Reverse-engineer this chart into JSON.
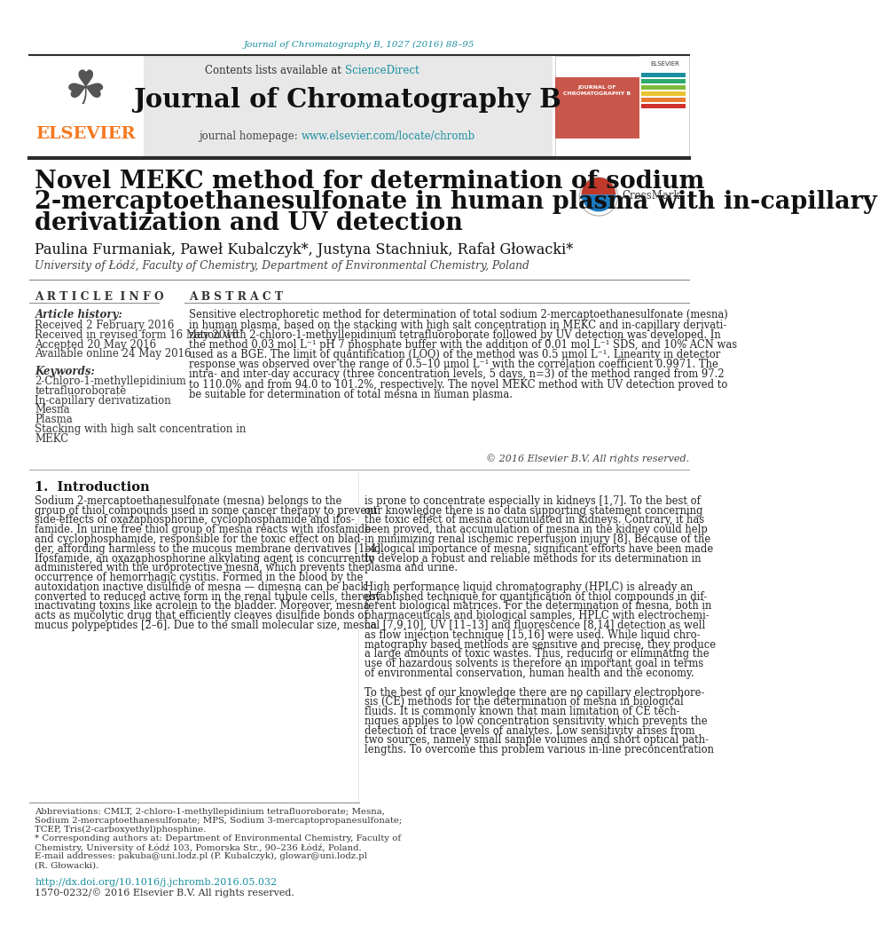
{
  "page_bg": "#ffffff",
  "journal_ref_color": "#1a8fa0",
  "journal_ref_text": "Journal of Chromatography B, 1027 (2016) 88–95",
  "header_bg": "#e8e8e8",
  "contents_text": "Contents lists available at ",
  "sciencedirect_text": "ScienceDirect",
  "sciencedirect_color": "#1a8fa0",
  "journal_title": "Journal of Chromatography B",
  "homepage_text": "journal homepage: ",
  "homepage_url": "www.elsevier.com/locate/chromb",
  "homepage_url_color": "#1a8fa0",
  "elsevier_color": "#f47920",
  "elsevier_text": "ELSEVIER",
  "separator_color": "#2c2c2c",
  "article_title_line1": "Novel MEKC method for determination of sodium",
  "article_title_line2": "2-mercaptoethanesulfonate in human plasma with in-capillary",
  "article_title_line3": "derivatization and UV detection",
  "authors": "Paulina Furmaniak, Paweł Kubalczyk*, Justyna Stachniuk, Rafał Głowacki*",
  "affiliation": "University of Łódź, Faculty of Chemistry, Department of Environmental Chemistry, Poland",
  "article_info_title": "A R T I C L E  I N F O",
  "abstract_title": "A B S T R A C T",
  "article_history_label": "Article history:",
  "received": "Received 2 February 2016",
  "received_revised": "Received in revised form 16 May 2016",
  "accepted": "Accepted 20 May 2016",
  "available": "Available online 24 May 2016",
  "keywords_label": "Keywords:",
  "keywords": [
    "2-Chloro-1-methyllepidinium",
    "tetrafluoroborate",
    "In-capillary derivatization",
    "Mesna",
    "Plasma",
    "Stacking with high salt concentration in",
    "MEKC"
  ],
  "abstract_lines": [
    "Sensitive electrophoretic method for determination of total sodium 2-mercaptoethanesulfonate (mesna)",
    "in human plasma, based on the stacking with high salt concentration in MEKC and in-capillary derivati-",
    "zation with 2-chloro-1-methyllepidinium tetrafluoroborate followed by UV detection was developed. In",
    "the method 0.03 mol L⁻¹ pH 7 phosphate buffer with the addition of 0.01 mol L⁻¹ SDS, and 10% ACN was",
    "used as a BGE. The limit of quantification (LOQ) of the method was 0.5 μmol L⁻¹. Linearity in detector",
    "response was observed over the range of 0.5–10 μmol L⁻¹ with the correlation coefficient 0.9971. The",
    "intra- and inter-day accuracy (three concentration levels, 5 days, n=3) of the method ranged from 97.2",
    "to 110.0% and from 94.0 to 101.2%, respectively. The novel MEKC method with UV detection proved to",
    "be suitable for determination of total mesna in human plasma."
  ],
  "copyright": "© 2016 Elsevier B.V. All rights reserved.",
  "intro_title": "1.  Introduction",
  "intro_col1_lines": [
    "Sodium 2-mercaptoethanesulfonate (mesna) belongs to the",
    "group of thiol compounds used in some cancer therapy to prevent",
    "side-effects of oxazaphosphorine, cyclophosphamide and ifos-",
    "famide. In urine free thiol group of mesna reacts with ifosfamide",
    "and cyclophosphamide, responsible for the toxic effect on blad-",
    "der, affording harmless to the mucous membrane derivatives [1–4].",
    "Ifosfamide, an oxazaphosphorine alkylating agent is concurrently",
    "administered with the uroprotective mesna, which prevents the",
    "occurrence of hemorrhagic cystitis. Formed in the blood by the",
    "autoxidation inactive disulfide of mesna — dimesna can be back",
    "converted to reduced active form in the renal tubule cells, thereby",
    "inactivating toxins like acrolein to the bladder. Moreover, mesna",
    "acts as mucolytic drug that efficiently cleaves disulfide bonds of",
    "mucus polypeptides [2–6]. Due to the small molecular size, mesna"
  ],
  "intro_col2_lines": [
    "is prone to concentrate especially in kidneys [1,7]. To the best of",
    "our knowledge there is no data supporting statement concerning",
    "the toxic effect of mesna accumulated in kidneys. Contrary, it has",
    "been proved, that accumulation of mesna in the kidney could help",
    "in minimizing renal ischemic reperfusion injury [8]. Because of the",
    "biological importance of mesna, significant efforts have been made",
    "to develop a robust and reliable methods for its determination in",
    "plasma and urine.",
    "",
    "High performance liquid chromatography (HPLC) is already an",
    "established technique for quantification of thiol compounds in dif-",
    "ferent biological matrices. For the determination of mesna, both in",
    "pharmaceuticals and biological samples, HPLC with electrochemi-",
    "cal [7,9,10], UV [11–13] and fluorescence [8,14] detection as well",
    "as flow injection technique [15,16] were used. While liquid chro-",
    "matography based methods are sensitive and precise, they produce",
    "a large amounts of toxic wastes. Thus, reducing or eliminating the",
    "use of hazardous solvents is therefore an important goal in terms",
    "of environmental conservation, human health and the economy.",
    "",
    "To the best of our knowledge there are no capillary electrophore-",
    "sis (CE) methods for the determination of mesna in biological",
    "fluids. It is commonly known that main limitation of CE tech-",
    "niques applies to low concentration sensitivity which prevents the",
    "detection of trace levels of analytes. Low sensitivity arises from",
    "two sources, namely small sample volumes and short optical path-",
    "lengths. To overcome this problem various in-line preconcentration"
  ],
  "footnote_lines": [
    "Abbreviations: CMLT, 2-chloro-1-methyllepidinium tetrafluoroborate; Mesna,",
    "Sodium 2-mercaptoethanesulfonate; MPS, Sodium 3-mercaptopropanesulfonate;",
    "TCEP, Tris(2-carboxyethyl)phosphine.",
    "* Corresponding authors at: Department of Environmental Chemistry, Faculty of",
    "Chemistry, University of Łódź 103, Pomorska Str., 90–236 Łódź, Poland.",
    "E-mail addresses: pakuba@uni.lodz.pl (P. Kubalczyk), glowar@uni.lodz.pl",
    "(R. Głowacki)."
  ],
  "doi_text": "http://dx.doi.org/10.1016/j.jchromb.2016.05.032",
  "doi_color": "#1a8fa0",
  "issn_text": "1570-0232/© 2016 Elsevier B.V. All rights reserved.",
  "stripe_colors": [
    "#1e5fa0",
    "#1e5fa0",
    "#1a8fa0",
    "#2eaa6e",
    "#7fba3a",
    "#e8c430",
    "#e87c30",
    "#d03030"
  ]
}
